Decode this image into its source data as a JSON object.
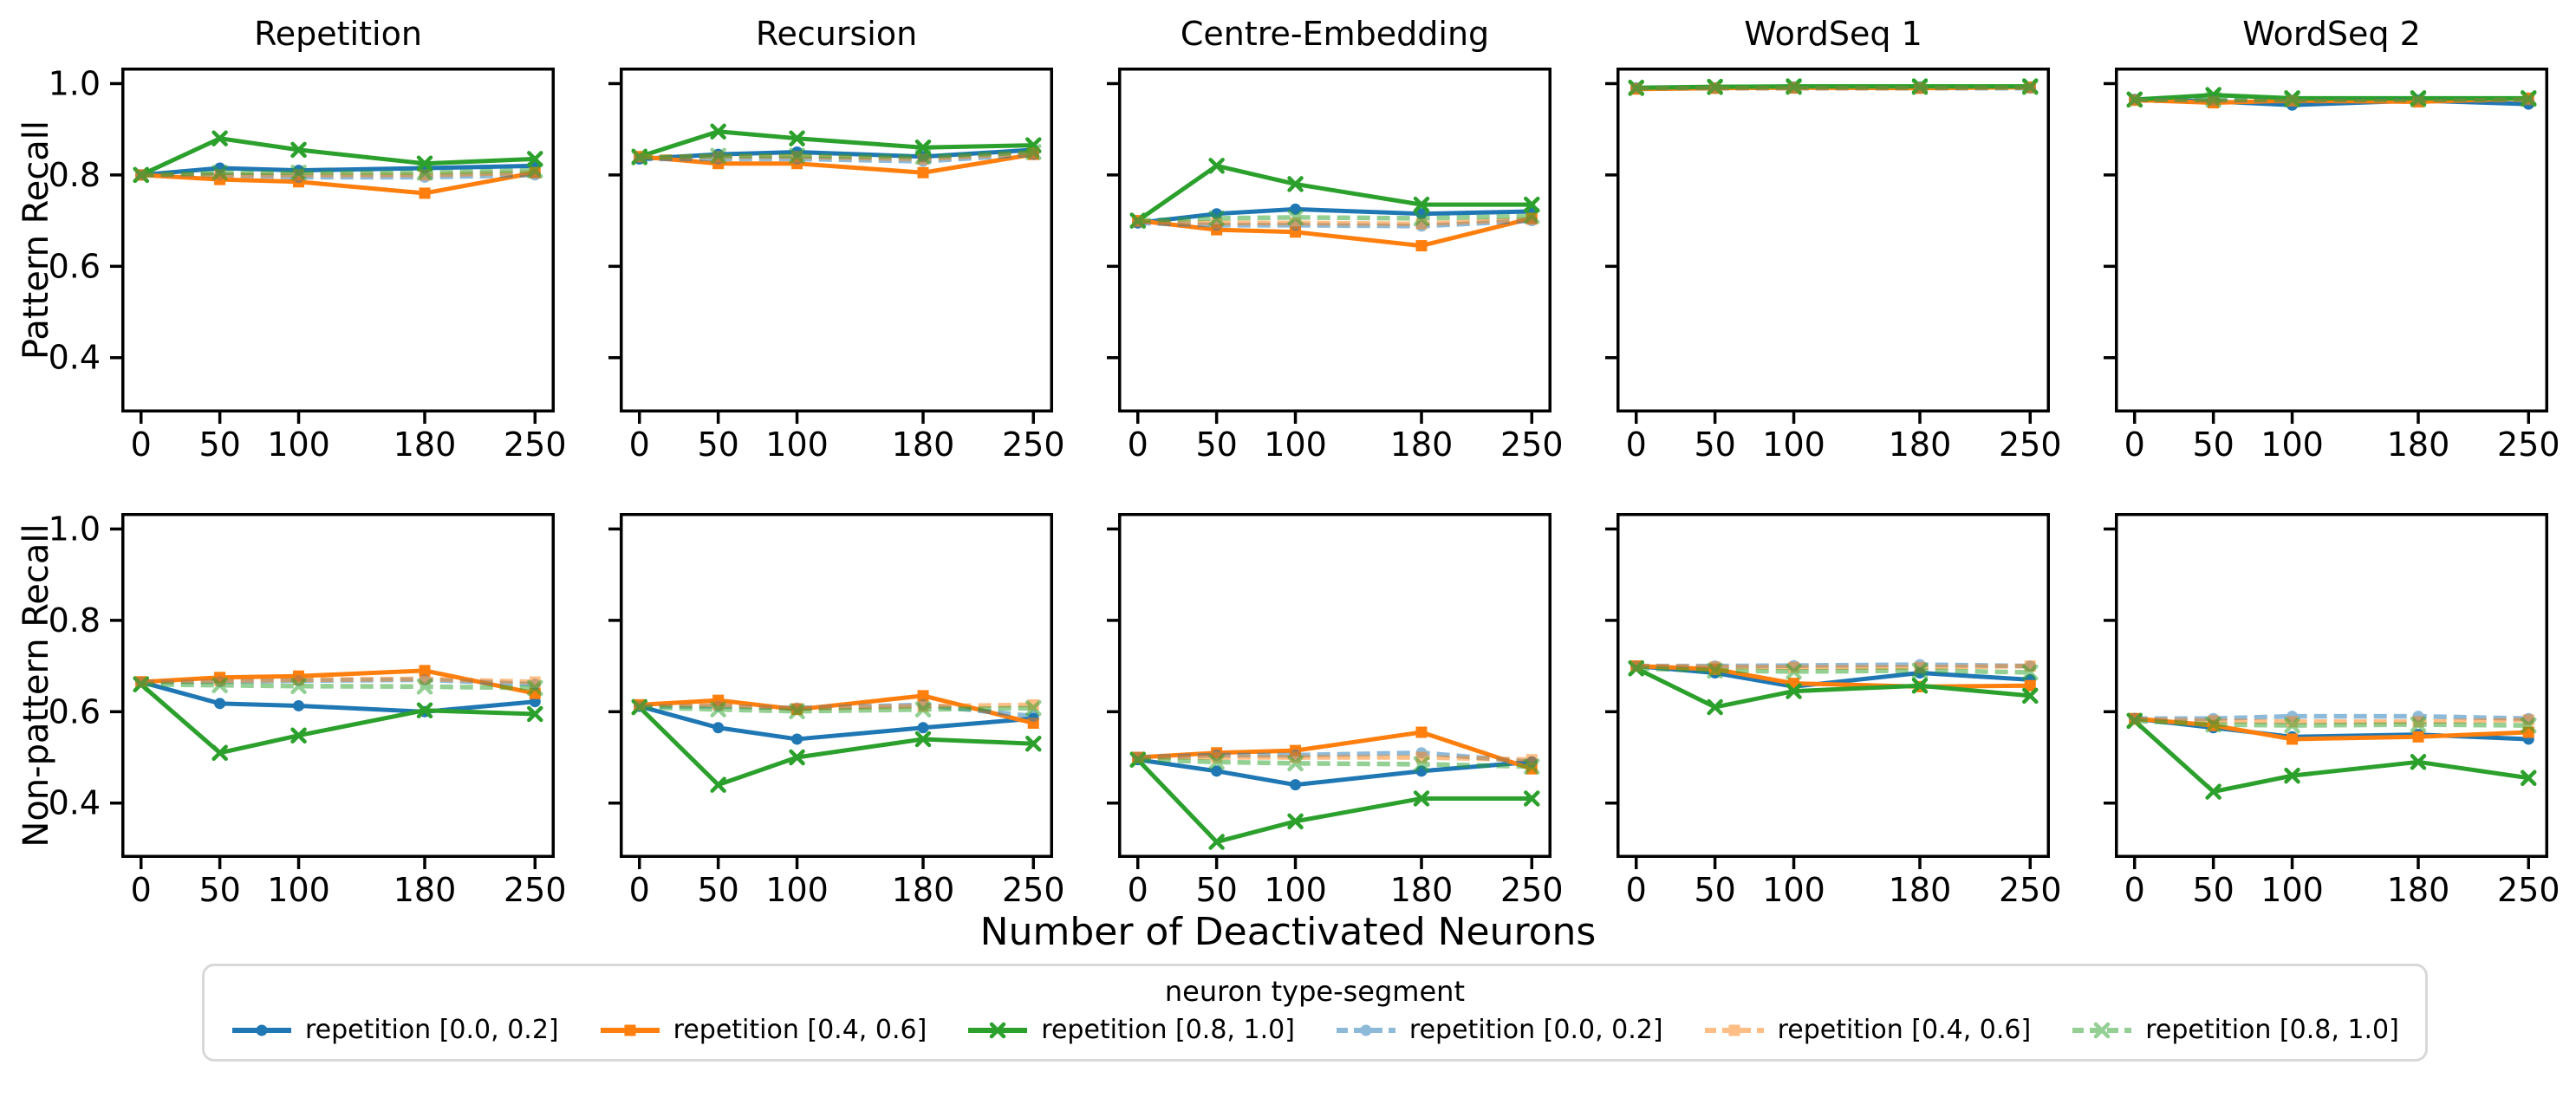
{
  "figure": {
    "columns": [
      "Repetition",
      "Recursion",
      "Centre-Embedding",
      "WordSeq 1",
      "WordSeq 2"
    ],
    "row_labels": [
      "Pattern Recall",
      "Non-pattern Recall"
    ],
    "xlabel": "Number of Deactivated Neurons",
    "x_ticks": [
      0,
      50,
      100,
      180,
      250
    ],
    "y_ticks": [
      {
        "v": 1.0,
        "label": "1.0"
      },
      {
        "v": 0.8,
        "label": "0.8"
      },
      {
        "v": 0.6,
        "label": "0.6"
      },
      {
        "v": 0.4,
        "label": "0.4"
      }
    ],
    "xlim": [
      -12.5,
      262.5
    ],
    "ylim": [
      0.28,
      1.035
    ],
    "grid": false,
    "spine_color": "#000000",
    "background": "#ffffff"
  },
  "legend": {
    "title": "neuron type-segment",
    "position": "lower center",
    "entries": [
      {
        "label": "repetition [0.0, 0.2]",
        "color": "#1f77b4",
        "marker": "circle",
        "linestyle": "solid"
      },
      {
        "label": "repetition [0.4, 0.6]",
        "color": "#ff7f0e",
        "marker": "square",
        "linestyle": "solid"
      },
      {
        "label": "repetition [0.8, 1.0]",
        "color": "#2ca02c",
        "marker": "x",
        "linestyle": "solid"
      },
      {
        "label": "repetition [0.0, 0.2]",
        "color": "#1f77b4",
        "marker": "circle",
        "linestyle": "dashed"
      },
      {
        "label": "repetition [0.4, 0.6]",
        "color": "#ff7f0e",
        "marker": "square",
        "linestyle": "dashed"
      },
      {
        "label": "repetition [0.8, 1.0]",
        "color": "#2ca02c",
        "marker": "x",
        "linestyle": "dashed"
      }
    ]
  },
  "chart_data": [
    {
      "type": "line",
      "row": 0,
      "col": 0,
      "title": "Repetition",
      "row_label": "Pattern Recall",
      "x": [
        0,
        50,
        100,
        180,
        250
      ],
      "series": [
        {
          "name": "repetition [0.0, 0.2]",
          "style": 0,
          "values": [
            0.8,
            0.815,
            0.81,
            0.815,
            0.82
          ]
        },
        {
          "name": "repetition [0.4, 0.6]",
          "style": 1,
          "values": [
            0.8,
            0.79,
            0.785,
            0.76,
            0.805
          ]
        },
        {
          "name": "repetition [0.8, 1.0]",
          "style": 2,
          "values": [
            0.8,
            0.88,
            0.855,
            0.825,
            0.835
          ]
        },
        {
          "name": "repetition [0.0, 0.2]",
          "style": 3,
          "values": [
            0.8,
            0.8,
            0.795,
            0.795,
            0.8
          ]
        },
        {
          "name": "repetition [0.4, 0.6]",
          "style": 4,
          "values": [
            0.8,
            0.8,
            0.8,
            0.8,
            0.805
          ]
        },
        {
          "name": "repetition [0.8, 1.0]",
          "style": 5,
          "values": [
            0.8,
            0.805,
            0.805,
            0.805,
            0.81
          ]
        }
      ]
    },
    {
      "type": "line",
      "row": 0,
      "col": 1,
      "title": "Recursion",
      "row_label": "Pattern Recall",
      "x": [
        0,
        50,
        100,
        180,
        250
      ],
      "series": [
        {
          "name": "repetition [0.0, 0.2]",
          "style": 0,
          "values": [
            0.835,
            0.845,
            0.85,
            0.84,
            0.855
          ]
        },
        {
          "name": "repetition [0.4, 0.6]",
          "style": 1,
          "values": [
            0.84,
            0.825,
            0.825,
            0.805,
            0.845
          ]
        },
        {
          "name": "repetition [0.8, 1.0]",
          "style": 2,
          "values": [
            0.84,
            0.895,
            0.88,
            0.86,
            0.865
          ]
        },
        {
          "name": "repetition [0.0, 0.2]",
          "style": 3,
          "values": [
            0.835,
            0.835,
            0.835,
            0.83,
            0.845
          ]
        },
        {
          "name": "repetition [0.4, 0.6]",
          "style": 4,
          "values": [
            0.84,
            0.84,
            0.84,
            0.835,
            0.848
          ]
        },
        {
          "name": "repetition [0.8, 1.0]",
          "style": 5,
          "values": [
            0.838,
            0.842,
            0.842,
            0.84,
            0.85
          ]
        }
      ]
    },
    {
      "type": "line",
      "row": 0,
      "col": 2,
      "title": "Centre-Embedding",
      "row_label": "Pattern Recall",
      "x": [
        0,
        50,
        100,
        180,
        250
      ],
      "series": [
        {
          "name": "repetition [0.0, 0.2]",
          "style": 0,
          "values": [
            0.695,
            0.715,
            0.725,
            0.715,
            0.72
          ]
        },
        {
          "name": "repetition [0.4, 0.6]",
          "style": 1,
          "values": [
            0.7,
            0.68,
            0.675,
            0.645,
            0.705
          ]
        },
        {
          "name": "repetition [0.8, 1.0]",
          "style": 2,
          "values": [
            0.7,
            0.82,
            0.78,
            0.735,
            0.735
          ]
        },
        {
          "name": "repetition [0.0, 0.2]",
          "style": 3,
          "values": [
            0.695,
            0.69,
            0.69,
            0.688,
            0.7
          ]
        },
        {
          "name": "repetition [0.4, 0.6]",
          "style": 4,
          "values": [
            0.698,
            0.695,
            0.695,
            0.693,
            0.703
          ]
        },
        {
          "name": "repetition [0.8, 1.0]",
          "style": 5,
          "values": [
            0.7,
            0.705,
            0.707,
            0.705,
            0.71
          ]
        }
      ]
    },
    {
      "type": "line",
      "row": 0,
      "col": 3,
      "title": "WordSeq 1",
      "row_label": "Pattern Recall",
      "x": [
        0,
        50,
        100,
        180,
        250
      ],
      "series": [
        {
          "name": "repetition [0.0, 0.2]",
          "style": 0,
          "values": [
            0.99,
            0.99,
            0.992,
            0.992,
            0.992
          ]
        },
        {
          "name": "repetition [0.4, 0.6]",
          "style": 1,
          "values": [
            0.988,
            0.99,
            0.991,
            0.99,
            0.992
          ]
        },
        {
          "name": "repetition [0.8, 1.0]",
          "style": 2,
          "values": [
            0.991,
            0.993,
            0.994,
            0.994,
            0.994
          ]
        },
        {
          "name": "repetition [0.0, 0.2]",
          "style": 3,
          "values": [
            0.99,
            0.99,
            0.99,
            0.99,
            0.99
          ]
        },
        {
          "name": "repetition [0.4, 0.6]",
          "style": 4,
          "values": [
            0.989,
            0.99,
            0.99,
            0.99,
            0.991
          ]
        },
        {
          "name": "repetition [0.8, 1.0]",
          "style": 5,
          "values": [
            0.99,
            0.992,
            0.992,
            0.992,
            0.992
          ]
        }
      ]
    },
    {
      "type": "line",
      "row": 0,
      "col": 4,
      "title": "WordSeq 2",
      "row_label": "Pattern Recall",
      "x": [
        0,
        50,
        100,
        180,
        250
      ],
      "series": [
        {
          "name": "repetition [0.0, 0.2]",
          "style": 0,
          "values": [
            0.965,
            0.961,
            0.953,
            0.963,
            0.955
          ]
        },
        {
          "name": "repetition [0.4, 0.6]",
          "style": 1,
          "values": [
            0.964,
            0.958,
            0.963,
            0.96,
            0.968
          ]
        },
        {
          "name": "repetition [0.8, 1.0]",
          "style": 2,
          "values": [
            0.965,
            0.975,
            0.968,
            0.968,
            0.968
          ]
        },
        {
          "name": "repetition [0.0, 0.2]",
          "style": 3,
          "values": [
            0.965,
            0.963,
            0.963,
            0.964,
            0.963
          ]
        },
        {
          "name": "repetition [0.4, 0.6]",
          "style": 4,
          "values": [
            0.963,
            0.961,
            0.962,
            0.961,
            0.965
          ]
        },
        {
          "name": "repetition [0.8, 1.0]",
          "style": 5,
          "values": [
            0.965,
            0.965,
            0.965,
            0.965,
            0.966
          ]
        }
      ]
    },
    {
      "type": "line",
      "row": 1,
      "col": 0,
      "title": "Repetition",
      "row_label": "Non-pattern Recall",
      "x": [
        0,
        50,
        100,
        180,
        250
      ],
      "series": [
        {
          "name": "repetition [0.0, 0.2]",
          "style": 0,
          "values": [
            0.665,
            0.618,
            0.613,
            0.6,
            0.622
          ]
        },
        {
          "name": "repetition [0.4, 0.6]",
          "style": 1,
          "values": [
            0.665,
            0.675,
            0.678,
            0.69,
            0.64
          ]
        },
        {
          "name": "repetition [0.8, 1.0]",
          "style": 2,
          "values": [
            0.66,
            0.51,
            0.548,
            0.603,
            0.595
          ]
        },
        {
          "name": "repetition [0.0, 0.2]",
          "style": 3,
          "values": [
            0.665,
            0.666,
            0.668,
            0.67,
            0.66
          ]
        },
        {
          "name": "repetition [0.4, 0.6]",
          "style": 4,
          "values": [
            0.666,
            0.668,
            0.67,
            0.672,
            0.665
          ]
        },
        {
          "name": "repetition [0.8, 1.0]",
          "style": 5,
          "values": [
            0.66,
            0.658,
            0.656,
            0.655,
            0.652
          ]
        }
      ]
    },
    {
      "type": "line",
      "row": 1,
      "col": 1,
      "title": "Recursion",
      "row_label": "Non-pattern Recall",
      "x": [
        0,
        50,
        100,
        180,
        250
      ],
      "series": [
        {
          "name": "repetition [0.0, 0.2]",
          "style": 0,
          "values": [
            0.612,
            0.565,
            0.54,
            0.565,
            0.585
          ]
        },
        {
          "name": "repetition [0.4, 0.6]",
          "style": 1,
          "values": [
            0.615,
            0.625,
            0.605,
            0.635,
            0.575
          ]
        },
        {
          "name": "repetition [0.8, 1.0]",
          "style": 2,
          "values": [
            0.61,
            0.44,
            0.5,
            0.54,
            0.53
          ]
        },
        {
          "name": "repetition [0.0, 0.2]",
          "style": 3,
          "values": [
            0.612,
            0.612,
            0.608,
            0.615,
            0.59
          ]
        },
        {
          "name": "repetition [0.4, 0.6]",
          "style": 4,
          "values": [
            0.615,
            0.615,
            0.607,
            0.612,
            0.615
          ]
        },
        {
          "name": "repetition [0.8, 1.0]",
          "style": 5,
          "values": [
            0.61,
            0.605,
            0.601,
            0.605,
            0.608
          ]
        }
      ]
    },
    {
      "type": "line",
      "row": 1,
      "col": 2,
      "title": "Centre-Embedding",
      "row_label": "Non-pattern Recall",
      "x": [
        0,
        50,
        100,
        180,
        250
      ],
      "series": [
        {
          "name": "repetition [0.0, 0.2]",
          "style": 0,
          "values": [
            0.495,
            0.47,
            0.44,
            0.47,
            0.49
          ]
        },
        {
          "name": "repetition [0.4, 0.6]",
          "style": 1,
          "values": [
            0.5,
            0.51,
            0.515,
            0.555,
            0.475
          ]
        },
        {
          "name": "repetition [0.8, 1.0]",
          "style": 2,
          "values": [
            0.495,
            0.315,
            0.36,
            0.41,
            0.41
          ]
        },
        {
          "name": "repetition [0.0, 0.2]",
          "style": 3,
          "values": [
            0.5,
            0.505,
            0.505,
            0.51,
            0.49
          ]
        },
        {
          "name": "repetition [0.4, 0.6]",
          "style": 4,
          "values": [
            0.5,
            0.5,
            0.5,
            0.5,
            0.495
          ]
        },
        {
          "name": "repetition [0.8, 1.0]",
          "style": 5,
          "values": [
            0.495,
            0.49,
            0.487,
            0.485,
            0.48
          ]
        }
      ]
    },
    {
      "type": "line",
      "row": 1,
      "col": 3,
      "title": "WordSeq 1",
      "row_label": "Non-pattern Recall",
      "x": [
        0,
        50,
        100,
        180,
        250
      ],
      "series": [
        {
          "name": "repetition [0.0, 0.2]",
          "style": 0,
          "values": [
            0.7,
            0.685,
            0.655,
            0.685,
            0.67
          ]
        },
        {
          "name": "repetition [0.4, 0.6]",
          "style": 1,
          "values": [
            0.7,
            0.693,
            0.662,
            0.655,
            0.657
          ]
        },
        {
          "name": "repetition [0.8, 1.0]",
          "style": 2,
          "values": [
            0.695,
            0.61,
            0.645,
            0.657,
            0.635
          ]
        },
        {
          "name": "repetition [0.0, 0.2]",
          "style": 3,
          "values": [
            0.7,
            0.7,
            0.701,
            0.703,
            0.7
          ]
        },
        {
          "name": "repetition [0.4, 0.6]",
          "style": 4,
          "values": [
            0.7,
            0.698,
            0.697,
            0.697,
            0.7
          ]
        },
        {
          "name": "repetition [0.8, 1.0]",
          "style": 5,
          "values": [
            0.695,
            0.69,
            0.688,
            0.69,
            0.686
          ]
        }
      ]
    },
    {
      "type": "line",
      "row": 1,
      "col": 4,
      "title": "WordSeq 2",
      "row_label": "Non-pattern Recall",
      "x": [
        0,
        50,
        100,
        180,
        250
      ],
      "series": [
        {
          "name": "repetition [0.0, 0.2]",
          "style": 0,
          "values": [
            0.585,
            0.565,
            0.545,
            0.55,
            0.54
          ]
        },
        {
          "name": "repetition [0.4, 0.6]",
          "style": 1,
          "values": [
            0.585,
            0.57,
            0.54,
            0.545,
            0.555
          ]
        },
        {
          "name": "repetition [0.8, 1.0]",
          "style": 2,
          "values": [
            0.58,
            0.425,
            0.46,
            0.49,
            0.455
          ]
        },
        {
          "name": "repetition [0.0, 0.2]",
          "style": 3,
          "values": [
            0.585,
            0.585,
            0.59,
            0.59,
            0.585
          ]
        },
        {
          "name": "repetition [0.4, 0.6]",
          "style": 4,
          "values": [
            0.583,
            0.58,
            0.578,
            0.578,
            0.582
          ]
        },
        {
          "name": "repetition [0.8, 1.0]",
          "style": 5,
          "values": [
            0.58,
            0.572,
            0.57,
            0.572,
            0.57
          ]
        }
      ]
    }
  ]
}
